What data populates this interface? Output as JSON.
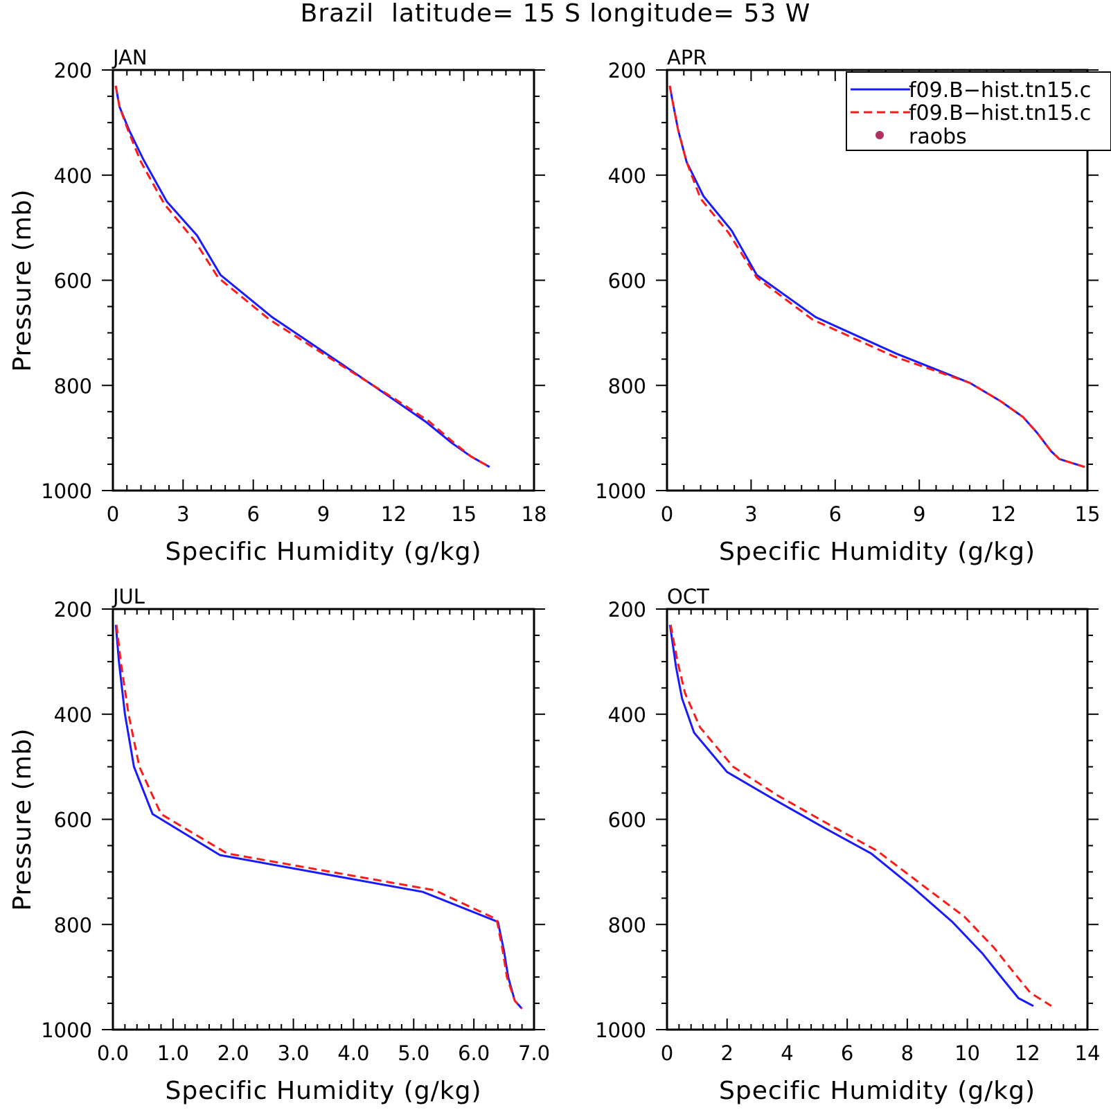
{
  "title": "Brazil  latitude= 15 S longitude= 53 W",
  "colors": {
    "model1": "#1a1aff",
    "model2": "#ff1a1a",
    "raobs": "#b03060"
  },
  "legend": {
    "placement": "top-right of APR panel",
    "entries": [
      {
        "label": "f09.B−hist.tn15.c",
        "style": "solid",
        "color": "#1a1aff"
      },
      {
        "label": "f09.B−hist.tn15.c",
        "style": "dashed",
        "color": "#ff1a1a"
      },
      {
        "label": "raobs",
        "style": "dot",
        "color": "#b03060"
      }
    ]
  },
  "chart_data": [
    {
      "type": "line",
      "panel_label": "JAN",
      "xlabel": "Specific Humidity (g/kg)",
      "ylabel": "Pressure (mb)",
      "xlim": [
        0,
        18
      ],
      "ylim": [
        1000,
        200
      ],
      "y_scale": "linear-reversed",
      "xticks": [
        0,
        3,
        6,
        9,
        12,
        15,
        18
      ],
      "xtick_labels": [
        "0",
        "3",
        "6",
        "9",
        "12",
        "15",
        "18"
      ],
      "yticks": [
        200,
        400,
        600,
        800,
        1000
      ],
      "ytick_labels": [
        "200",
        "400",
        "600",
        "800",
        "1000"
      ],
      "series": [
        {
          "color": "#1a1aff",
          "style": "solid",
          "x": [
            0.12,
            0.28,
            0.7,
            1.3,
            2.3,
            3.6,
            4.6,
            6.8,
            9.8,
            12.1,
            13.4,
            14.5,
            15.3,
            16.1
          ],
          "y": [
            230,
            270,
            315,
            370,
            450,
            515,
            590,
            670,
            760,
            830,
            870,
            910,
            935,
            955
          ]
        },
        {
          "color": "#ff1a1a",
          "style": "dashed",
          "x": [
            0.12,
            0.28,
            0.65,
            1.2,
            2.2,
            3.5,
            4.5,
            6.7,
            9.7,
            12.2,
            13.5,
            14.6,
            15.3,
            16.1
          ],
          "y": [
            230,
            270,
            315,
            375,
            455,
            525,
            595,
            675,
            760,
            830,
            868,
            910,
            935,
            955
          ]
        }
      ]
    },
    {
      "type": "line",
      "panel_label": "APR",
      "xlabel": "Specific Humidity (g/kg)",
      "ylabel": "",
      "xlim": [
        0,
        15
      ],
      "ylim": [
        1000,
        200
      ],
      "y_scale": "linear-reversed",
      "xticks": [
        0,
        3,
        6,
        9,
        12,
        15
      ],
      "xtick_labels": [
        "0",
        "3",
        "6",
        "9",
        "12",
        "15"
      ],
      "yticks": [
        200,
        400,
        600,
        800,
        1000
      ],
      "ytick_labels": [
        "200",
        "400",
        "600",
        "800",
        "1000"
      ],
      "series": [
        {
          "color": "#1a1aff",
          "style": "solid",
          "x": [
            0.1,
            0.2,
            0.4,
            0.7,
            1.3,
            2.3,
            3.2,
            5.3,
            8.2,
            10.8,
            11.9,
            12.7,
            13.2,
            13.7,
            14.0,
            14.9
          ],
          "y": [
            230,
            260,
            315,
            375,
            440,
            505,
            590,
            670,
            740,
            795,
            830,
            860,
            890,
            925,
            940,
            955
          ]
        },
        {
          "color": "#ff1a1a",
          "style": "dashed",
          "x": [
            0.1,
            0.2,
            0.4,
            0.7,
            1.2,
            2.2,
            3.2,
            5.2,
            8.1,
            10.8,
            11.9,
            12.7,
            13.2,
            13.7,
            14.0,
            14.9
          ],
          "y": [
            230,
            260,
            315,
            375,
            445,
            510,
            595,
            675,
            745,
            795,
            830,
            860,
            890,
            925,
            940,
            955
          ]
        }
      ]
    },
    {
      "type": "line",
      "panel_label": "JUL",
      "xlabel": "Specific Humidity (g/kg)",
      "ylabel": "Pressure (mb)",
      "xlim": [
        0,
        7
      ],
      "ylim": [
        1000,
        200
      ],
      "y_scale": "linear-reversed",
      "xticks": [
        0,
        1,
        2,
        3,
        4,
        5,
        6,
        7
      ],
      "xtick_labels": [
        "0.0",
        "1.0",
        "2.0",
        "3.0",
        "4.0",
        "5.0",
        "6.0",
        "7.0"
      ],
      "yticks": [
        200,
        400,
        600,
        800,
        1000
      ],
      "ytick_labels": [
        "200",
        "400",
        "600",
        "800",
        "1000"
      ],
      "series": [
        {
          "color": "#1a1aff",
          "style": "solid",
          "x": [
            0.05,
            0.1,
            0.2,
            0.35,
            0.66,
            1.78,
            5.15,
            6.4,
            6.5,
            6.57,
            6.68,
            6.8
          ],
          "y": [
            230,
            300,
            400,
            500,
            590,
            668,
            738,
            795,
            850,
            900,
            945,
            960
          ]
        },
        {
          "color": "#ff1a1a",
          "style": "dashed",
          "x": [
            0.06,
            0.13,
            0.26,
            0.44,
            0.8,
            1.9,
            5.35,
            6.38,
            6.48,
            6.55,
            6.68,
            6.8
          ],
          "y": [
            230,
            300,
            400,
            500,
            590,
            665,
            735,
            790,
            850,
            900,
            945,
            960
          ]
        }
      ]
    },
    {
      "type": "line",
      "panel_label": "OCT",
      "xlabel": "Specific Humidity (g/kg)",
      "ylabel": "",
      "xlim": [
        0,
        14
      ],
      "ylim": [
        1000,
        200
      ],
      "y_scale": "linear-reversed",
      "xticks": [
        0,
        2,
        4,
        6,
        8,
        10,
        12,
        14
      ],
      "xtick_labels": [
        "0",
        "2",
        "4",
        "6",
        "8",
        "10",
        "12",
        "14"
      ],
      "yticks": [
        200,
        400,
        600,
        800,
        1000
      ],
      "ytick_labels": [
        "200",
        "400",
        "600",
        "800",
        "1000"
      ],
      "series": [
        {
          "color": "#1a1aff",
          "style": "solid",
          "x": [
            0.1,
            0.3,
            0.5,
            0.9,
            2.0,
            3.5,
            5.2,
            6.8,
            8.2,
            9.5,
            10.5,
            11.2,
            11.7,
            12.2
          ],
          "y": [
            230,
            310,
            370,
            435,
            510,
            560,
            615,
            665,
            730,
            795,
            855,
            905,
            940,
            955
          ]
        },
        {
          "color": "#ff1a1a",
          "style": "dashed",
          "x": [
            0.12,
            0.35,
            0.6,
            1.1,
            2.2,
            3.7,
            5.4,
            7.0,
            8.5,
            9.9,
            10.9,
            11.6,
            12.1,
            12.8
          ],
          "y": [
            230,
            300,
            360,
            425,
            500,
            555,
            610,
            660,
            725,
            785,
            845,
            895,
            930,
            955
          ]
        }
      ]
    }
  ]
}
